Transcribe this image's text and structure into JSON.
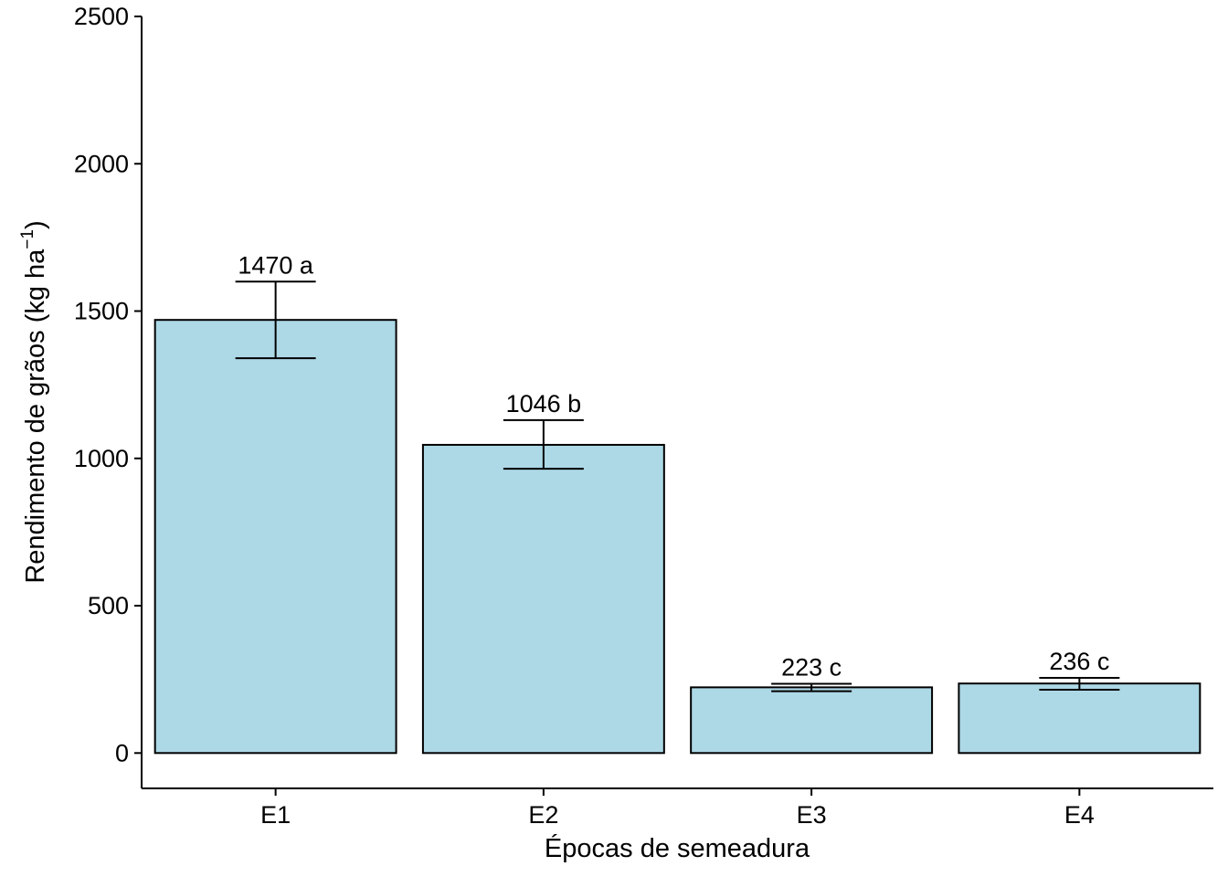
{
  "chart_data": {
    "type": "bar",
    "categories": [
      "E1",
      "E2",
      "E3",
      "E4"
    ],
    "values": [
      1470,
      1046,
      223,
      236
    ],
    "error_low": [
      1340,
      965,
      210,
      215
    ],
    "error_high": [
      1600,
      1130,
      235,
      255
    ],
    "bar_labels": [
      "1470 a",
      "1046 b",
      "223 c",
      "236 c"
    ],
    "title": "",
    "xlabel": "Épocas de semeadura",
    "ylabel_main": "Rendimento de grãos (kg ha",
    "ylabel_sup": "−1",
    "ylabel_close": ")",
    "ylim": [
      -120,
      2500
    ],
    "yticks": [
      0,
      500,
      1000,
      1500,
      2000,
      2500
    ],
    "ytick_labels": [
      "0",
      "500",
      "1000",
      "1500",
      "2000",
      "2500"
    ],
    "grid": false,
    "legend": "none",
    "bar_color": "#add8e6",
    "outline_color": "#000000"
  }
}
